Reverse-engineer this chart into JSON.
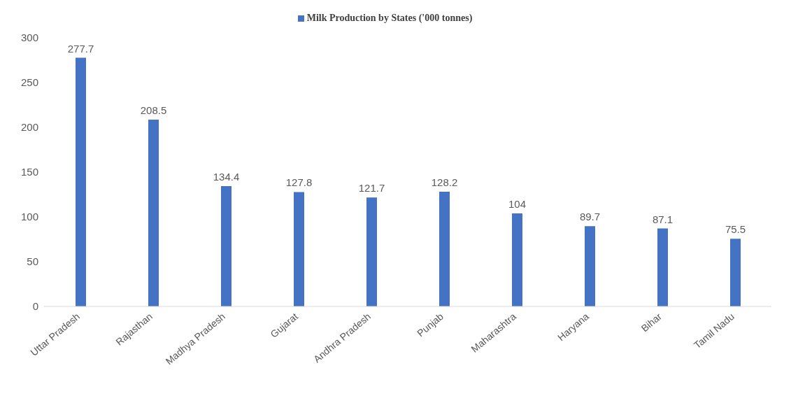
{
  "chart_data": {
    "type": "bar",
    "categories": [
      "Uttar Pradesh",
      "Rajasthan",
      "Madhya Pradesh",
      "Gujarat",
      "Andhra Pradesh",
      "Punjab",
      "Maharashtra",
      "Haryana",
      "Bihar",
      "Tamil Nadu"
    ],
    "series": [
      {
        "name": "Milk Production by States ('000 tonnes)",
        "color": "#4472c4",
        "values": [
          277.7,
          208.5,
          134.4,
          127.8,
          121.7,
          128.2,
          104,
          89.7,
          87.1,
          75.5
        ]
      }
    ],
    "ylim": [
      0,
      300
    ],
    "yticks": [
      0,
      50,
      100,
      150,
      200,
      250,
      300
    ],
    "grid": false,
    "legend": "top",
    "data_labels": true
  }
}
